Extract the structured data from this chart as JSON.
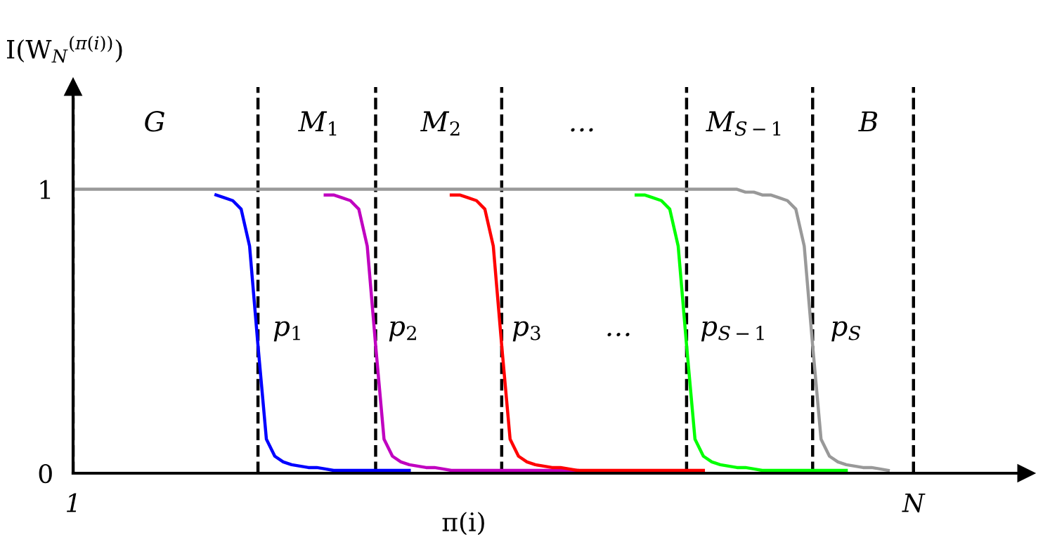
{
  "chart_data": {
    "type": "line",
    "xlabel": "π(i)",
    "ylabel": "I(W$_{N}$$^{(π(i))}$)",
    "categories": [
      "1",
      null,
      null,
      null,
      null,
      null,
      null,
      null,
      null,
      null,
      null,
      null,
      null,
      null,
      null,
      null,
      null,
      null,
      null,
      null,
      null,
      null,
      null,
      null,
      null,
      null,
      null,
      null,
      null,
      null,
      null,
      null,
      null,
      null,
      null,
      null,
      null,
      null,
      null,
      null,
      null,
      null,
      null,
      null,
      null,
      null,
      null,
      null,
      null,
      null,
      null,
      null,
      null,
      null,
      null,
      null,
      null,
      null,
      null,
      null,
      null,
      null,
      null,
      null,
      null,
      null,
      null,
      null,
      null,
      null,
      null,
      null,
      null,
      null,
      null,
      null,
      null,
      null,
      null,
      null,
      null,
      null,
      null,
      null,
      null,
      null,
      null,
      null,
      null,
      null,
      null,
      null,
      null,
      null,
      null,
      null,
      null,
      null,
      null,
      null,
      "N"
    ],
    "ylim": [
      0,
      1.36
    ],
    "yticks": [
      0,
      1
    ],
    "grid": "x",
    "legend": false,
    "marker": "none",
    "line_style": "solid",
    "series": [
      {
        "color": "#0000ff",
        "values": [
          null,
          null,
          null,
          null,
          null,
          null,
          null,
          null,
          null,
          null,
          null,
          null,
          null,
          null,
          null,
          null,
          null,
          0.98,
          0.97,
          0.96,
          0.93,
          0.8,
          0.45,
          0.12,
          0.06,
          0.04,
          0.03,
          0.025,
          0.02,
          0.02,
          0.015,
          0.01,
          0.01,
          0.01,
          0.01,
          0.01,
          0.01,
          0.01,
          0.01,
          0.01,
          0.01,
          null,
          null,
          null,
          null,
          null,
          null,
          null,
          null,
          null,
          null,
          null,
          null,
          null,
          null,
          null,
          null,
          null,
          null,
          null,
          null,
          null,
          null,
          null,
          null,
          null,
          null,
          null,
          null,
          null,
          null,
          null,
          null,
          null,
          null,
          null,
          null,
          null,
          null,
          null,
          null,
          null,
          null,
          null,
          null,
          null,
          null,
          null,
          null,
          null,
          null,
          null,
          null,
          null,
          null,
          null,
          null,
          null,
          null,
          null,
          null
        ]
      },
      {
        "color": "#c000c0",
        "values": [
          null,
          null,
          null,
          null,
          null,
          null,
          null,
          null,
          null,
          null,
          null,
          null,
          null,
          null,
          null,
          null,
          null,
          null,
          null,
          null,
          null,
          null,
          null,
          null,
          null,
          null,
          null,
          null,
          null,
          null,
          0.98,
          0.98,
          0.97,
          0.96,
          0.93,
          0.8,
          0.45,
          0.12,
          0.06,
          0.04,
          0.03,
          0.025,
          0.02,
          0.02,
          0.015,
          0.01,
          0.01,
          0.01,
          0.01,
          0.01,
          0.01,
          0.01,
          0.01,
          0.01,
          0.01,
          0.01,
          0.01,
          0.01,
          0.01,
          0.01,
          0.01,
          null,
          null,
          null,
          null,
          null,
          null,
          null,
          null,
          null,
          null,
          null,
          null,
          null,
          null,
          null,
          null,
          null,
          null,
          null,
          null,
          null,
          null,
          null,
          null,
          null,
          null,
          null,
          null,
          null,
          null,
          null,
          null,
          null,
          null,
          null,
          null,
          null,
          null,
          null,
          null
        ]
      },
      {
        "color": "#ff0000",
        "values": [
          null,
          null,
          null,
          null,
          null,
          null,
          null,
          null,
          null,
          null,
          null,
          null,
          null,
          null,
          null,
          null,
          null,
          null,
          null,
          null,
          null,
          null,
          null,
          null,
          null,
          null,
          null,
          null,
          null,
          null,
          null,
          null,
          null,
          null,
          null,
          null,
          null,
          null,
          null,
          null,
          null,
          null,
          null,
          null,
          null,
          0.98,
          0.98,
          0.97,
          0.96,
          0.93,
          0.8,
          0.45,
          0.12,
          0.06,
          0.04,
          0.03,
          0.025,
          0.02,
          0.02,
          0.015,
          0.01,
          0.01,
          0.01,
          0.01,
          0.01,
          0.01,
          0.01,
          0.01,
          0.01,
          0.01,
          0.01,
          0.01,
          0.01,
          0.01,
          0.01,
          0.01,
          null,
          null,
          null,
          null,
          null,
          null,
          null,
          null,
          null,
          null,
          null,
          null,
          null,
          null,
          null,
          null,
          null,
          null,
          null,
          null,
          null,
          null,
          null,
          null,
          null
        ]
      },
      {
        "color": "#00ff00",
        "values": [
          null,
          null,
          null,
          null,
          null,
          null,
          null,
          null,
          null,
          null,
          null,
          null,
          null,
          null,
          null,
          null,
          null,
          null,
          null,
          null,
          null,
          null,
          null,
          null,
          null,
          null,
          null,
          null,
          null,
          null,
          null,
          null,
          null,
          null,
          null,
          null,
          null,
          null,
          null,
          null,
          null,
          null,
          null,
          null,
          null,
          null,
          null,
          null,
          null,
          null,
          null,
          null,
          null,
          null,
          null,
          null,
          null,
          null,
          null,
          null,
          null,
          null,
          null,
          null,
          null,
          null,
          null,
          0.98,
          0.98,
          0.97,
          0.96,
          0.93,
          0.8,
          0.45,
          0.12,
          0.06,
          0.04,
          0.03,
          0.025,
          0.02,
          0.02,
          0.015,
          0.01,
          0.01,
          0.01,
          0.01,
          0.01,
          0.01,
          0.01,
          0.01,
          0.01,
          0.01,
          0.01,
          null,
          null,
          null,
          null,
          null,
          null,
          null,
          null
        ]
      },
      {
        "color": "#999999",
        "values": [
          1,
          1,
          1,
          1,
          1,
          1,
          1,
          1,
          1,
          1,
          1,
          1,
          1,
          1,
          1,
          1,
          1,
          1,
          1,
          1,
          1,
          1,
          1,
          1,
          1,
          1,
          1,
          1,
          1,
          1,
          1,
          1,
          1,
          1,
          1,
          1,
          1,
          1,
          1,
          1,
          1,
          1,
          1,
          1,
          1,
          1,
          1,
          1,
          1,
          1,
          1,
          1,
          1,
          1,
          1,
          1,
          1,
          1,
          1,
          1,
          1,
          1,
          1,
          1,
          1,
          1,
          1,
          1,
          1,
          1,
          1,
          1,
          1,
          1,
          1,
          1,
          1,
          1,
          1,
          1,
          0.99,
          0.99,
          0.98,
          0.98,
          0.97,
          0.96,
          0.93,
          0.8,
          0.45,
          0.12,
          0.06,
          0.04,
          0.03,
          0.025,
          0.02,
          0.02,
          0.015,
          0.01,
          null,
          null,
          null
        ]
      }
    ],
    "annotations": [
      "G",
      "M$_{1}$",
      "M$_{2}$",
      "…",
      "M$_{S−1}$",
      "B",
      "p$_{1}$",
      "p$_{2}$",
      "p$_{3}$",
      "…",
      "p$_{S−1}$",
      "p$_{S}$"
    ]
  }
}
